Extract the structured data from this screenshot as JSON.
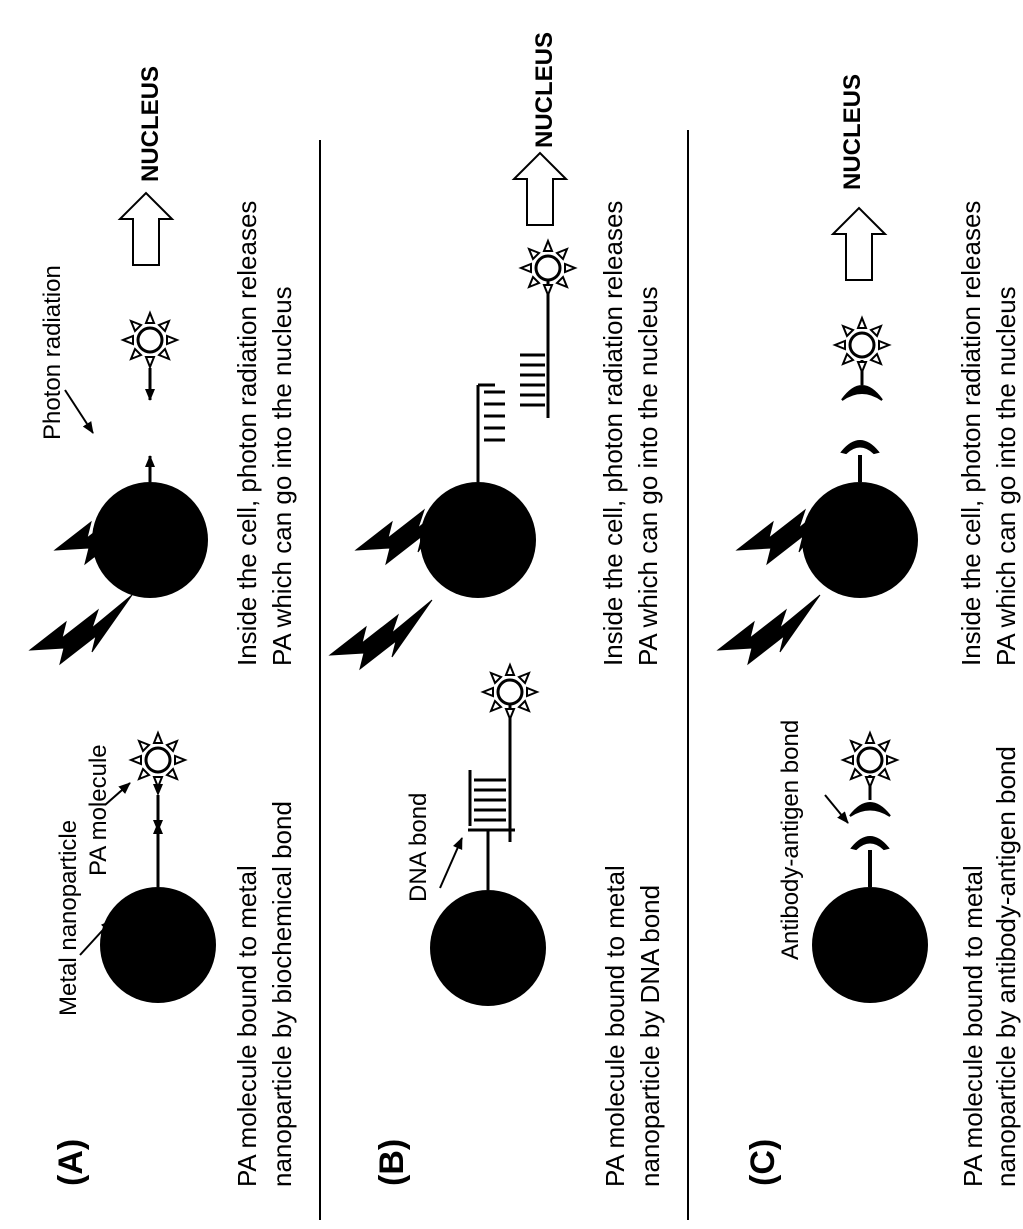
{
  "panels": [
    {
      "letter": "(A)",
      "caption_line1": "PA molecule bound to metal",
      "caption_line2": "nanoparticle by biochemical bond",
      "label_metal": "Metal nanoparticle",
      "label_pa": "PA molecule",
      "label_photon": "Photon radiation",
      "result_line1": "Inside the cell,  photon radiation releases",
      "result_line2": "PA which can go into the nucleus",
      "nucleus": "NUCLEUS"
    },
    {
      "letter": "(B)",
      "caption_line1": "PA molecule bound to metal",
      "caption_line2": "nanoparticle by DNA bond",
      "label_bond": "DNA bond",
      "result_line1": "Inside the cell,  photon radiation releases",
      "result_line2": "PA which can go into the nucleus",
      "nucleus": "NUCLEUS"
    },
    {
      "letter": "(C)",
      "caption_line1": "PA molecule bound to metal",
      "caption_line2": "nanoparticle by antibody-antigen bond",
      "label_bond": "Antibody-antigen  bond",
      "result_line1": "Inside the cell,  photon radiation releases",
      "result_line2": "PA which can go into the nucleus",
      "nucleus": "NUCLEUS"
    }
  ]
}
